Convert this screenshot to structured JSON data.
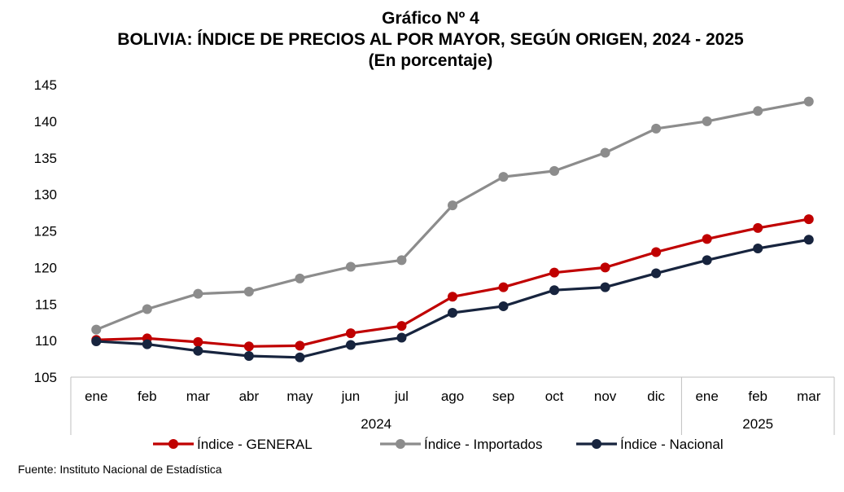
{
  "header": {
    "title": "Gráfico Nº 4",
    "subtitle": "BOLIVIA: ÍNDICE DE PRECIOS AL POR MAYOR, SEGÚN ORIGEN, 2024 - 2025",
    "unit": "(En porcentaje)"
  },
  "source": "Fuente: Instituto Nacional de Estadística",
  "colors": {
    "general": "#c00000",
    "importados": "#8c8c8c",
    "nacional": "#17243e"
  },
  "chart_data": {
    "type": "line",
    "categories": [
      "ene",
      "feb",
      "mar",
      "abr",
      "may",
      "jun",
      "jul",
      "ago",
      "sep",
      "oct",
      "nov",
      "dic",
      "ene",
      "feb",
      "mar"
    ],
    "year_groups": [
      {
        "label": "2024",
        "from": 0,
        "to": 11
      },
      {
        "label": "2025",
        "from": 12,
        "to": 14
      }
    ],
    "ylim": [
      105,
      145
    ],
    "yticks": [
      105,
      110,
      115,
      120,
      125,
      130,
      135,
      140,
      145
    ],
    "grid": false,
    "legend_position": "bottom",
    "series": [
      {
        "key": "importados",
        "name": "Índice - Importados",
        "values": [
          111.5,
          114.3,
          116.4,
          116.7,
          118.5,
          120.1,
          121.0,
          128.5,
          132.4,
          133.2,
          135.7,
          139.0,
          140.0,
          141.4,
          142.7
        ]
      },
      {
        "key": "general",
        "name": "Índice - GENERAL",
        "values": [
          110.1,
          110.3,
          109.8,
          109.2,
          109.3,
          111.0,
          112.0,
          116.0,
          117.3,
          119.3,
          120.0,
          122.1,
          123.9,
          125.4,
          126.6
        ]
      },
      {
        "key": "nacional",
        "name": "Índice - Nacional",
        "values": [
          109.9,
          109.5,
          108.6,
          107.9,
          107.7,
          109.4,
          110.4,
          113.8,
          114.7,
          116.9,
          117.3,
          119.2,
          121.0,
          122.6,
          123.8
        ]
      }
    ],
    "legend_order": [
      "general",
      "importados",
      "nacional"
    ]
  }
}
